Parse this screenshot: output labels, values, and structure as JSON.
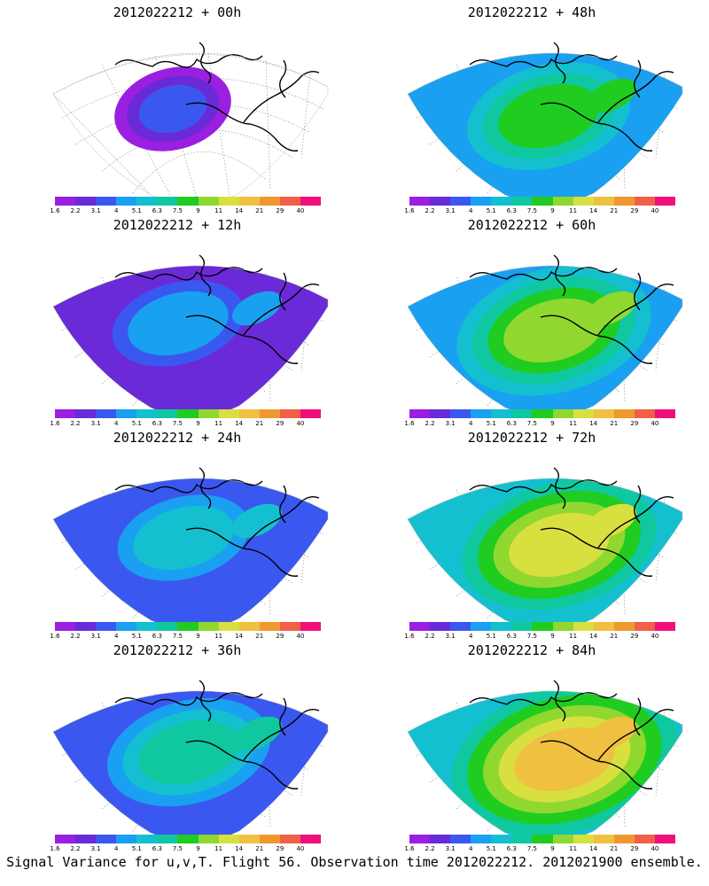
{
  "panels": [
    {
      "title": "2012022212 + 00h",
      "level": 0
    },
    {
      "title": "2012022212 + 48h",
      "level": 4
    },
    {
      "title": "2012022212 + 12h",
      "level": 1
    },
    {
      "title": "2012022212 + 60h",
      "level": 5
    },
    {
      "title": "2012022212 + 24h",
      "level": 2
    },
    {
      "title": "2012022212 + 72h",
      "level": 6
    },
    {
      "title": "2012022212 + 36h",
      "level": 3
    },
    {
      "title": "2012022212 + 84h",
      "level": 7
    }
  ],
  "colorbar": {
    "labels": [
      "1.6",
      "2.2",
      "3.1",
      "4",
      "5.1",
      "6.3",
      "7.5",
      "9",
      "11",
      "14",
      "21",
      "29",
      "40"
    ],
    "colors": [
      "#9b1fe0",
      "#6a2ad8",
      "#3a58f0",
      "#1aa0f0",
      "#14c0d0",
      "#10c8a0",
      "#20cc20",
      "#90d830",
      "#d8e040",
      "#f0c040",
      "#f09830",
      "#f06048",
      "#f0107a"
    ]
  },
  "caption": "Signal Variance for u,v,T. Flight 56. Observation time 2012022212. 2012021900 ensemble."
}
